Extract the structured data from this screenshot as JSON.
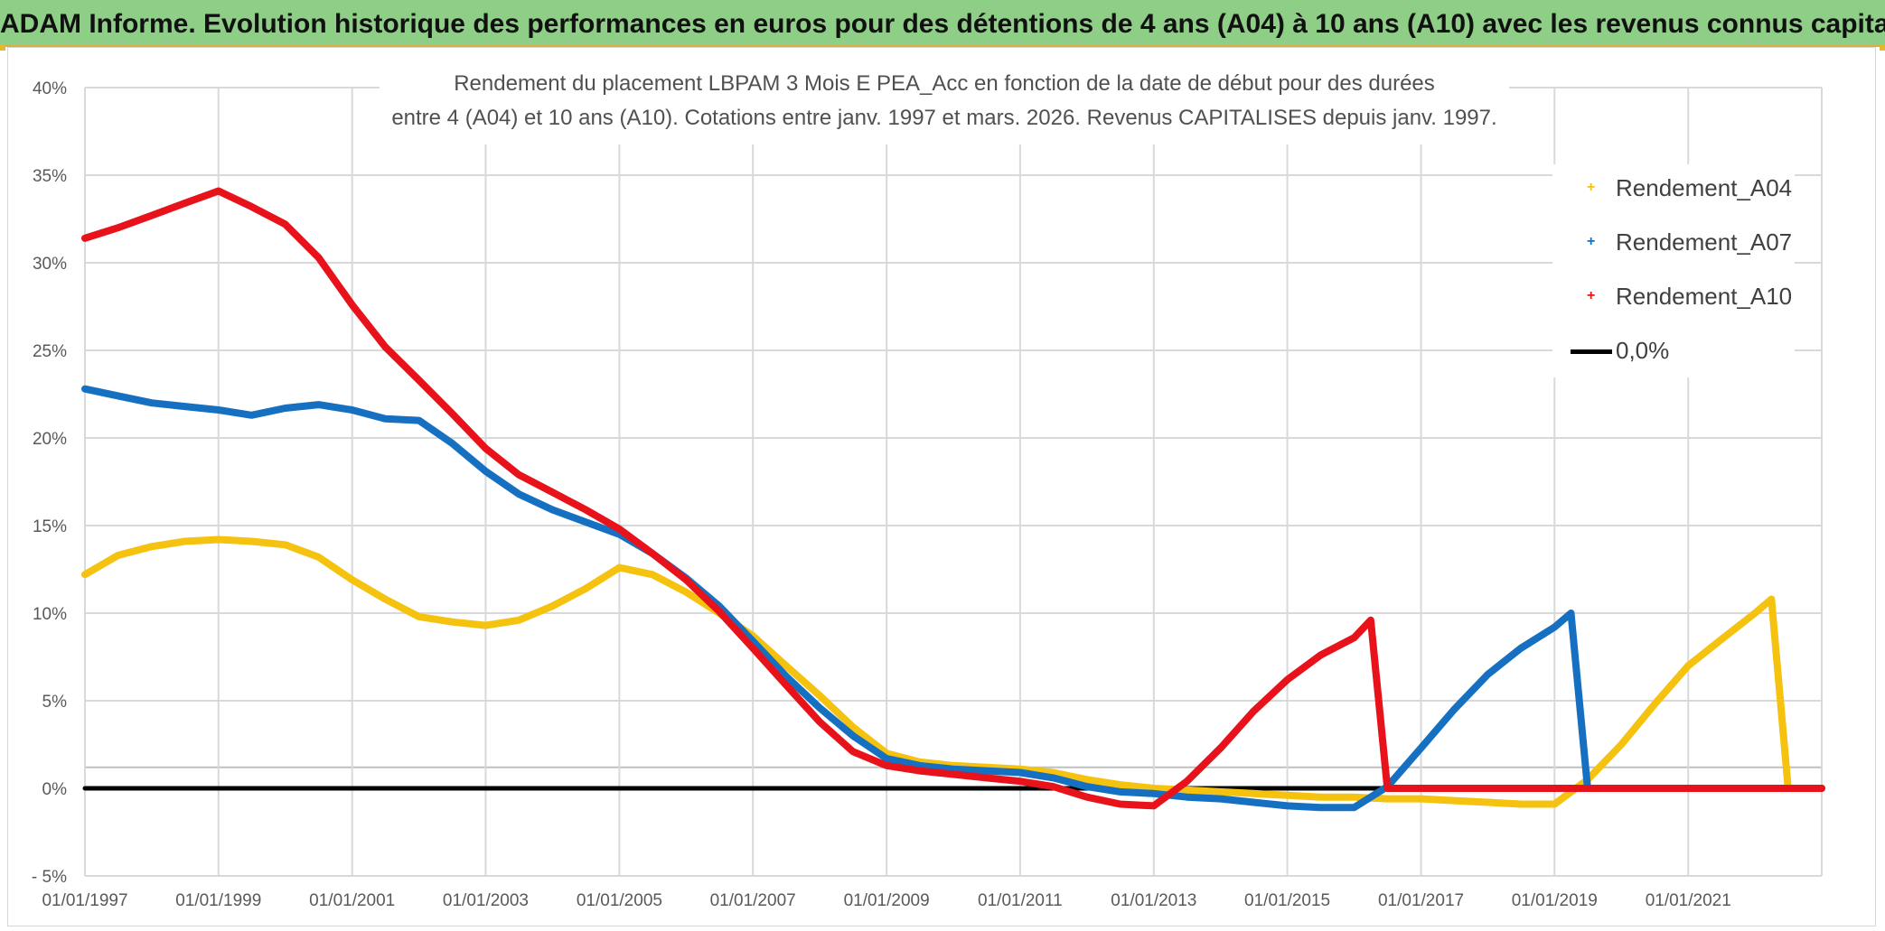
{
  "banner": {
    "title": "ADAM Informe. Evolution historique des performances en euros pour des détentions de 4 ans (A04) à 10 ans (A10) avec les revenus connus capitalisés"
  },
  "colors": {
    "banner_bg": "#8fce86",
    "A04": "#f5c20f",
    "A07": "#1670c2",
    "A10": "#e8121b",
    "zero": "#000000",
    "grid": "#d9d9d9",
    "axis_text": "#595959"
  },
  "chart_data": {
    "type": "line",
    "title": "Rendement du placement LBPAM 3 Mois E PEA_Acc en fonction de la date de début pour des durées",
    "subtitle": "entre 4 (A04) et 10 ans (A10). Cotations entre janv. 1997 et mars. 2026. Revenus CAPITALISES depuis janv. 1997.",
    "xlabel": "",
    "ylabel": "",
    "x_axis": {
      "type": "date",
      "min": "1997-01-01",
      "max": "2023-01-01",
      "tick_labels": [
        "01/01/1997",
        "01/01/1999",
        "01/01/2001",
        "01/01/2003",
        "01/01/2005",
        "01/01/2007",
        "01/01/2009",
        "01/01/2011",
        "01/01/2013",
        "01/01/2015",
        "01/01/2017",
        "01/01/2019",
        "01/01/2021"
      ]
    },
    "y_axis": {
      "min": -5,
      "max": 40,
      "unit": "%",
      "tick_labels": [
        "40%",
        "35%",
        "30%",
        "25%",
        "20%",
        "15%",
        "10%",
        "5%",
        "0%",
        "- 5%"
      ]
    },
    "grid": true,
    "legend_position": "top-right",
    "series": [
      {
        "name": "Rendement_A04",
        "x": [
          "1997-01-01",
          "1997-07-01",
          "1998-01-01",
          "1998-07-01",
          "1999-01-01",
          "1999-07-01",
          "2000-01-01",
          "2000-07-01",
          "2001-01-01",
          "2001-07-01",
          "2002-01-01",
          "2002-07-01",
          "2003-01-01",
          "2003-07-01",
          "2004-01-01",
          "2004-07-01",
          "2005-01-01",
          "2005-07-01",
          "2006-01-01",
          "2006-07-01",
          "2007-01-01",
          "2007-07-01",
          "2008-01-01",
          "2008-07-01",
          "2009-01-01",
          "2009-07-01",
          "2010-01-01",
          "2010-07-01",
          "2011-01-01",
          "2011-07-01",
          "2012-01-01",
          "2012-07-01",
          "2013-01-01",
          "2013-07-01",
          "2014-01-01",
          "2014-07-01",
          "2015-01-01",
          "2015-07-01",
          "2016-01-01",
          "2016-07-01",
          "2017-01-01",
          "2017-07-01",
          "2018-01-01",
          "2018-07-01",
          "2019-01-01",
          "2019-07-01",
          "2020-01-01",
          "2020-07-01",
          "2021-01-01",
          "2021-07-01",
          "2022-01-01",
          "2022-04-01",
          "2022-07-01",
          "2023-01-01"
        ],
        "values": [
          12.2,
          13.3,
          13.8,
          14.1,
          14.2,
          14.1,
          13.9,
          13.2,
          11.9,
          10.8,
          9.8,
          9.5,
          9.3,
          9.6,
          10.4,
          11.4,
          12.6,
          12.2,
          11.2,
          10.0,
          8.7,
          7.0,
          5.3,
          3.5,
          2.0,
          1.5,
          1.3,
          1.2,
          1.1,
          0.9,
          0.5,
          0.2,
          0.0,
          -0.1,
          -0.2,
          -0.3,
          -0.4,
          -0.5,
          -0.5,
          -0.6,
          -0.6,
          -0.7,
          -0.8,
          -0.9,
          -0.9,
          0.5,
          2.5,
          4.8,
          7.0,
          8.5,
          10.0,
          10.8,
          0.0,
          0.0
        ]
      },
      {
        "name": "Rendement_A07",
        "x": [
          "1997-01-01",
          "1997-07-01",
          "1998-01-01",
          "1998-07-01",
          "1999-01-01",
          "1999-07-01",
          "2000-01-01",
          "2000-07-01",
          "2001-01-01",
          "2001-07-01",
          "2002-01-01",
          "2002-07-01",
          "2003-01-01",
          "2003-07-01",
          "2004-01-01",
          "2004-07-01",
          "2005-01-01",
          "2005-07-01",
          "2006-01-01",
          "2006-07-01",
          "2007-01-01",
          "2007-07-01",
          "2008-01-01",
          "2008-07-01",
          "2009-01-01",
          "2009-07-01",
          "2010-01-01",
          "2010-07-01",
          "2011-01-01",
          "2011-07-01",
          "2012-01-01",
          "2012-07-01",
          "2013-01-01",
          "2013-07-01",
          "2014-01-01",
          "2014-07-01",
          "2015-01-01",
          "2015-07-01",
          "2016-01-01",
          "2016-07-01",
          "2017-01-01",
          "2017-07-01",
          "2018-01-01",
          "2018-07-01",
          "2019-01-01",
          "2019-04-01",
          "2019-07-01",
          "2023-01-01"
        ],
        "values": [
          22.8,
          22.4,
          22.0,
          21.8,
          21.6,
          21.3,
          21.7,
          21.9,
          21.6,
          21.1,
          21.0,
          19.7,
          18.1,
          16.8,
          15.9,
          15.2,
          14.5,
          13.4,
          12.0,
          10.4,
          8.4,
          6.4,
          4.6,
          3.0,
          1.7,
          1.3,
          1.1,
          1.0,
          0.9,
          0.6,
          0.1,
          -0.2,
          -0.3,
          -0.5,
          -0.6,
          -0.8,
          -1.0,
          -1.1,
          -1.1,
          0.1,
          2.3,
          4.5,
          6.5,
          8.0,
          9.2,
          10.0,
          0.0,
          0.0
        ]
      },
      {
        "name": "Rendement_A10",
        "x": [
          "1997-01-01",
          "1997-07-01",
          "1998-01-01",
          "1998-07-01",
          "1999-01-01",
          "1999-07-01",
          "2000-01-01",
          "2000-07-01",
          "2001-01-01",
          "2001-07-01",
          "2002-01-01",
          "2002-07-01",
          "2003-01-01",
          "2003-07-01",
          "2004-01-01",
          "2004-07-01",
          "2005-01-01",
          "2005-07-01",
          "2006-01-01",
          "2006-07-01",
          "2007-01-01",
          "2007-07-01",
          "2008-01-01",
          "2008-07-01",
          "2009-01-01",
          "2009-07-01",
          "2010-01-01",
          "2010-07-01",
          "2011-01-01",
          "2011-07-01",
          "2012-01-01",
          "2012-07-01",
          "2013-01-01",
          "2013-07-01",
          "2014-01-01",
          "2014-07-01",
          "2015-01-01",
          "2015-07-01",
          "2016-01-01",
          "2016-04-01",
          "2016-07-01",
          "2023-01-01"
        ],
        "values": [
          31.4,
          32.0,
          32.7,
          33.4,
          34.1,
          33.2,
          32.2,
          30.3,
          27.6,
          25.2,
          23.3,
          21.4,
          19.4,
          17.9,
          16.9,
          15.9,
          14.8,
          13.4,
          11.9,
          10.1,
          8.0,
          5.9,
          3.8,
          2.1,
          1.3,
          1.0,
          0.8,
          0.6,
          0.4,
          0.1,
          -0.5,
          -0.9,
          -1.0,
          0.4,
          2.3,
          4.4,
          6.2,
          7.6,
          8.6,
          9.6,
          0.0,
          0.0
        ]
      },
      {
        "name": "0,0%",
        "x": [
          "1997-01-01",
          "2023-01-01"
        ],
        "values": [
          0,
          0
        ]
      }
    ]
  }
}
